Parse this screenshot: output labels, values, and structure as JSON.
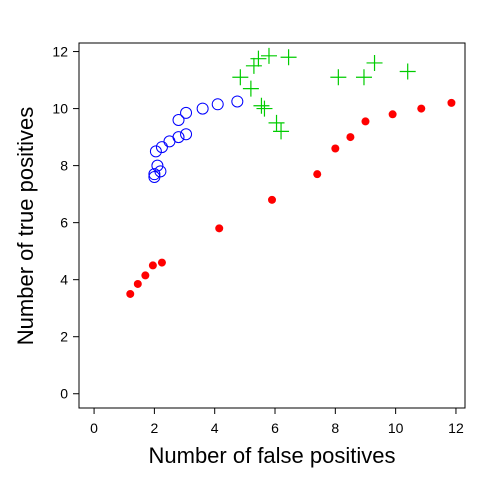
{
  "chart_data": {
    "type": "scatter",
    "title": "",
    "xlabel": "Number of false positives",
    "ylabel": "Number of true positives",
    "xlim": [
      -0.5,
      12.3
    ],
    "ylim": [
      -0.5,
      12.3
    ],
    "xticks": [
      0,
      2,
      4,
      6,
      8,
      10,
      12
    ],
    "yticks": [
      0,
      2,
      4,
      6,
      8,
      10,
      12
    ],
    "grid": false,
    "legend": "none",
    "series": [
      {
        "marker": "open-circle",
        "color": "#0000ff",
        "points": [
          [
            2.0,
            7.6
          ],
          [
            2.0,
            7.7
          ],
          [
            2.1,
            8.0
          ],
          [
            2.2,
            7.8
          ],
          [
            2.05,
            8.5
          ],
          [
            2.25,
            8.65
          ],
          [
            2.5,
            8.85
          ],
          [
            2.8,
            9.0
          ],
          [
            3.05,
            9.1
          ],
          [
            2.8,
            9.6
          ],
          [
            3.05,
            9.85
          ],
          [
            3.6,
            10.0
          ],
          [
            4.1,
            10.15
          ],
          [
            4.75,
            10.25
          ]
        ]
      },
      {
        "marker": "plus",
        "color": "#00cc00",
        "points": [
          [
            4.85,
            11.1
          ],
          [
            5.2,
            10.7
          ],
          [
            5.3,
            11.5
          ],
          [
            5.45,
            11.75
          ],
          [
            5.8,
            11.85
          ],
          [
            5.55,
            10.1
          ],
          [
            5.65,
            10.0
          ],
          [
            6.05,
            9.5
          ],
          [
            6.2,
            9.2
          ],
          [
            6.45,
            11.8
          ],
          [
            8.1,
            11.1
          ],
          [
            8.95,
            11.1
          ],
          [
            9.3,
            11.6
          ],
          [
            10.4,
            11.3
          ]
        ]
      },
      {
        "marker": "filled-circle",
        "color": "#ff0000",
        "points": [
          [
            1.2,
            3.5
          ],
          [
            1.45,
            3.85
          ],
          [
            1.7,
            4.15
          ],
          [
            1.95,
            4.5
          ],
          [
            2.25,
            4.6
          ],
          [
            4.15,
            5.8
          ],
          [
            5.9,
            6.8
          ],
          [
            7.4,
            7.7
          ],
          [
            8.0,
            8.6
          ],
          [
            8.5,
            9.0
          ],
          [
            9.0,
            9.55
          ],
          [
            9.9,
            9.8
          ],
          [
            10.85,
            10.0
          ],
          [
            11.85,
            10.2
          ]
        ]
      }
    ]
  }
}
